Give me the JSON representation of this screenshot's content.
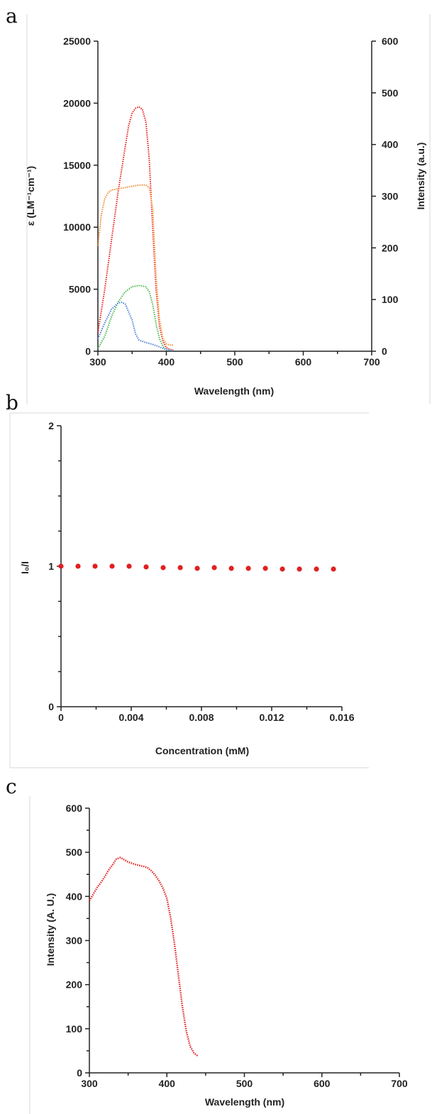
{
  "panels": [
    {
      "label": "a",
      "chart_data": {
        "type": "line",
        "title": "",
        "xlabel": "Wavelength (nm)",
        "ylabel": "ε (LM⁻¹cm⁻¹)",
        "y2label": "Intensity (a.u.)",
        "xlim": [
          300,
          700
        ],
        "ylim": [
          0,
          25000
        ],
        "y2lim": [
          0,
          600
        ],
        "xticks": [
          300,
          400,
          500,
          600,
          700
        ],
        "yticks": [
          0,
          5000,
          10000,
          15000,
          20000,
          25000
        ],
        "y2ticks": [
          0,
          100,
          200,
          300,
          400,
          500,
          600
        ],
        "grid": false,
        "legend": "none",
        "series": [
          {
            "axis": "left",
            "color": "#e8201f",
            "style": "dotted",
            "x": [
              300,
              310,
              320,
              330,
              340,
              345,
              350,
              355,
              360,
              365,
              370,
              375,
              380,
              385,
              390,
              395,
              400,
              405,
              410
            ],
            "y": [
              1500,
              5000,
              9000,
              13000,
              16500,
              18200,
              19200,
              19600,
              19700,
              19500,
              18500,
              15500,
              10000,
              5000,
              2000,
              800,
              300,
              150,
              100
            ]
          },
          {
            "axis": "left",
            "color": "#f08a30",
            "style": "dotted",
            "x": [
              300,
              305,
              310,
              315,
              320,
              330,
              340,
              350,
              360,
              370,
              375,
              380,
              385,
              390,
              395,
              400,
              405,
              410
            ],
            "y": [
              8500,
              11000,
              12300,
              12800,
              13000,
              13100,
              13200,
              13300,
              13400,
              13400,
              13200,
              11500,
              6000,
              2500,
              1000,
              600,
              500,
              500
            ]
          },
          {
            "axis": "left",
            "color": "#4ab84a",
            "style": "dotted",
            "x": [
              300,
              310,
              320,
              330,
              340,
              350,
              360,
              370,
              375,
              380,
              385,
              390,
              395,
              400,
              405,
              410
            ],
            "y": [
              200,
              1200,
              2800,
              4000,
              4800,
              5200,
              5300,
              5200,
              4800,
              3800,
              2200,
              1000,
              400,
              150,
              80,
              50
            ]
          },
          {
            "axis": "left",
            "color": "#4a7ed8",
            "style": "dotted",
            "x": [
              300,
              310,
              320,
              330,
              335,
              340,
              350,
              355,
              360,
              370,
              380,
              390,
              400,
              410
            ],
            "y": [
              1000,
              2300,
              3400,
              3900,
              3950,
              3800,
              2500,
              1400,
              900,
              700,
              550,
              350,
              120,
              60
            ]
          }
        ]
      }
    },
    {
      "label": "b",
      "chart_data": {
        "type": "scatter",
        "title": "",
        "xlabel": "Concentration (mM)",
        "ylabel": "I₀/I",
        "xlim": [
          0,
          0.016
        ],
        "ylim": [
          0,
          2
        ],
        "xticks": [
          0,
          0.004,
          0.008,
          0.012,
          0.016
        ],
        "xticklabels": [
          "0",
          "0.004",
          "0.008",
          "0.012",
          "0.016"
        ],
        "yticks": [
          0,
          1,
          2
        ],
        "grid": false,
        "legend": "none",
        "color": "#e02020",
        "x": [
          0,
          0.00097,
          0.00194,
          0.00291,
          0.00388,
          0.00485,
          0.00582,
          0.00679,
          0.00776,
          0.00873,
          0.0097,
          0.01067,
          0.01164,
          0.01261,
          0.01358,
          0.01455,
          0.01552
        ],
        "y": [
          1.0,
          1.0,
          1.0,
          1.0,
          1.0,
          0.995,
          0.99,
          0.99,
          0.985,
          0.99,
          0.985,
          0.985,
          0.985,
          0.98,
          0.98,
          0.98,
          0.98
        ]
      }
    },
    {
      "label": "c",
      "chart_data": {
        "type": "line",
        "title": "",
        "xlabel": "Wavelength (nm)",
        "ylabel": "Intensity (A. U.)",
        "xlim": [
          300,
          700
        ],
        "ylim": [
          0,
          600
        ],
        "xticks": [
          300,
          400,
          500,
          600,
          700
        ],
        "yticks": [
          0,
          100,
          200,
          300,
          400,
          500,
          600
        ],
        "grid": false,
        "legend": "none",
        "series": [
          {
            "color": "#e02020",
            "style": "dotted",
            "x": [
              300,
              305,
              310,
              315,
              320,
              325,
              330,
              335,
              340,
              345,
              350,
              355,
              360,
              365,
              370,
              375,
              380,
              385,
              390,
              395,
              400,
              405,
              410,
              415,
              420,
              425,
              430,
              435,
              440
            ],
            "y": [
              390,
              405,
              420,
              432,
              445,
              460,
              472,
              485,
              488,
              483,
              478,
              475,
              472,
              470,
              468,
              465,
              458,
              448,
              435,
              418,
              395,
              350,
              290,
              220,
              150,
              95,
              60,
              45,
              38
            ]
          }
        ]
      }
    }
  ]
}
